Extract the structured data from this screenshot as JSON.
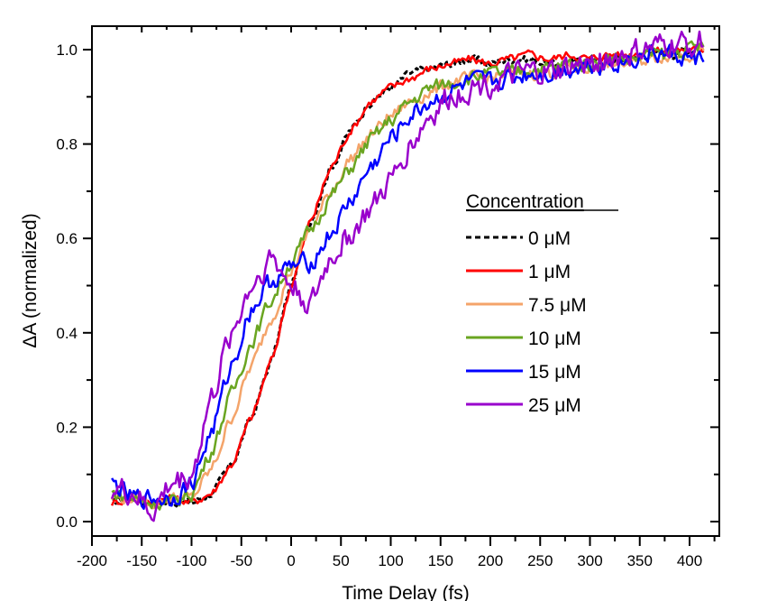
{
  "chart_data": {
    "type": "line",
    "title": "",
    "xlabel": "Time Delay (fs)",
    "ylabel": "ΔA (normalized)",
    "xlim": [
      -200,
      430
    ],
    "ylim": [
      -0.03,
      1.05
    ],
    "xticks": [
      -200,
      -150,
      -100,
      -50,
      0,
      50,
      100,
      150,
      200,
      250,
      300,
      350,
      400
    ],
    "xtick_labels": [
      "-200",
      "-150",
      "-100",
      "-50",
      "0",
      "50",
      "100",
      "150",
      "200",
      "250",
      "300",
      "350",
      "400"
    ],
    "yticks": [
      0.0,
      0.2,
      0.4,
      0.6,
      0.8,
      1.0
    ],
    "ytick_labels": [
      "0.0",
      "0.2",
      "0.4",
      "0.6",
      "0.8",
      "1.0"
    ],
    "grid": false,
    "legend": {
      "title": "Concentration",
      "position": "center-right"
    },
    "x": [
      -180,
      -160,
      -140,
      -120,
      -100,
      -80,
      -60,
      -40,
      -20,
      0,
      20,
      40,
      60,
      80,
      100,
      120,
      140,
      160,
      180,
      200,
      220,
      240,
      260,
      280,
      300,
      320,
      340,
      360,
      380,
      400,
      415
    ],
    "series": [
      {
        "name": "0 μM",
        "color": "#000000",
        "dash": true,
        "values": [
          0.04,
          0.05,
          0.04,
          0.04,
          0.04,
          0.06,
          0.12,
          0.22,
          0.34,
          0.5,
          0.64,
          0.75,
          0.83,
          0.89,
          0.92,
          0.95,
          0.96,
          0.97,
          0.98,
          0.97,
          0.98,
          0.98,
          0.97,
          0.97,
          0.98,
          0.98,
          0.98,
          0.99,
          0.99,
          1.0,
          1.0
        ]
      },
      {
        "name": "1 μM",
        "color": "#ff0000",
        "dash": false,
        "values": [
          0.04,
          0.05,
          0.04,
          0.05,
          0.04,
          0.06,
          0.12,
          0.22,
          0.34,
          0.5,
          0.64,
          0.75,
          0.83,
          0.89,
          0.92,
          0.94,
          0.96,
          0.97,
          0.98,
          0.97,
          0.98,
          0.99,
          0.98,
          0.99,
          0.98,
          0.99,
          0.99,
          1.0,
          1.0,
          1.0,
          1.0
        ]
      },
      {
        "name": "7.5 μM",
        "color": "#f4a46a",
        "dash": false,
        "values": [
          0.05,
          0.05,
          0.04,
          0.05,
          0.05,
          0.11,
          0.22,
          0.33,
          0.43,
          0.53,
          0.62,
          0.7,
          0.77,
          0.82,
          0.86,
          0.89,
          0.91,
          0.93,
          0.94,
          0.94,
          0.95,
          0.95,
          0.95,
          0.96,
          0.96,
          0.97,
          0.97,
          0.98,
          0.99,
          0.99,
          1.0
        ]
      },
      {
        "name": "10 μM",
        "color": "#6aa521",
        "dash": false,
        "values": [
          0.06,
          0.05,
          0.04,
          0.04,
          0.06,
          0.15,
          0.27,
          0.38,
          0.47,
          0.55,
          0.62,
          0.69,
          0.75,
          0.81,
          0.85,
          0.89,
          0.92,
          0.93,
          0.94,
          0.95,
          0.95,
          0.96,
          0.96,
          0.97,
          0.97,
          0.98,
          0.98,
          0.99,
          0.99,
          1.0,
          1.01
        ]
      },
      {
        "name": "15 μM",
        "color": "#0000ff",
        "dash": false,
        "values": [
          0.08,
          0.05,
          0.05,
          0.05,
          0.08,
          0.19,
          0.33,
          0.45,
          0.51,
          0.54,
          0.55,
          0.61,
          0.68,
          0.75,
          0.81,
          0.86,
          0.89,
          0.91,
          0.93,
          0.93,
          0.94,
          0.95,
          0.95,
          0.96,
          0.97,
          0.97,
          0.98,
          0.99,
          0.99,
          0.98,
          0.98
        ]
      },
      {
        "name": "25 μM",
        "color": "#9900cc",
        "dash": false,
        "values": [
          0.07,
          0.06,
          0.02,
          0.08,
          0.1,
          0.26,
          0.4,
          0.5,
          0.56,
          0.5,
          0.46,
          0.56,
          0.61,
          0.66,
          0.72,
          0.8,
          0.86,
          0.9,
          0.92,
          0.93,
          0.94,
          0.95,
          0.95,
          0.96,
          0.97,
          0.98,
          0.99,
          1.0,
          1.01,
          1.01,
          1.02
        ]
      }
    ]
  }
}
